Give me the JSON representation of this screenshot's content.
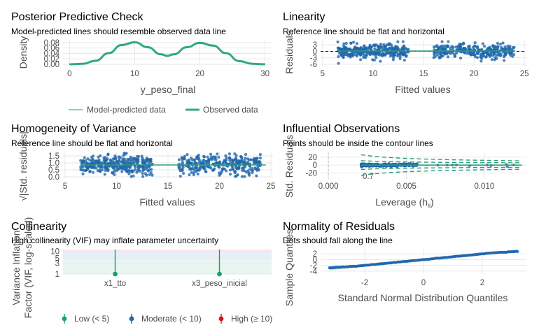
{
  "chart_data": [
    {
      "type": "line",
      "panel": "posterior-predictive-check",
      "title": "Posterior Predictive Check",
      "subtitle": "Model-predicted lines should resemble observed data line",
      "xlabel": "y_peso_final",
      "ylabel": "Density",
      "xlim": [
        -1,
        31
      ],
      "ylim": [
        0,
        0.09
      ],
      "xticks": [
        "0",
        "10",
        "20",
        "30"
      ],
      "yticks": [
        "0.00",
        "0.02",
        "0.04",
        "0.06",
        "0.08"
      ],
      "series": [
        {
          "name": "Model-predicted data",
          "color": "#1b9e77",
          "x": [
            0,
            2,
            4,
            6,
            8,
            10,
            12,
            14,
            15,
            16,
            18,
            20,
            22,
            24,
            26,
            28,
            30
          ],
          "y": [
            0.0,
            0.002,
            0.012,
            0.04,
            0.07,
            0.08,
            0.062,
            0.036,
            0.03,
            0.036,
            0.062,
            0.078,
            0.068,
            0.04,
            0.012,
            0.002,
            0.0
          ]
        },
        {
          "name": "Observed data",
          "color": "#33a983",
          "x": [
            0,
            2,
            4,
            6,
            8,
            10,
            12,
            14,
            15,
            16,
            18,
            20,
            22,
            24,
            26,
            28,
            30
          ],
          "y": [
            0.0,
            0.002,
            0.013,
            0.041,
            0.071,
            0.081,
            0.063,
            0.037,
            0.031,
            0.037,
            0.063,
            0.079,
            0.069,
            0.041,
            0.012,
            0.002,
            0.0
          ]
        }
      ],
      "legend_position": "bottom"
    },
    {
      "type": "scatter",
      "panel": "linearity",
      "title": "Linearity",
      "subtitle": "Reference line should be flat and horizontal",
      "xlabel": "Fitted values",
      "ylabel": "Residuals",
      "xlim": [
        4.8,
        25.2
      ],
      "ylim": [
        -7,
        5
      ],
      "xticks": [
        "5",
        "10",
        "15",
        "20",
        "25"
      ],
      "yticks": [
        "-6",
        "-3",
        "0",
        "3"
      ],
      "clusters": [
        {
          "x_range": [
            6.5,
            13.5
          ],
          "y_sd": 1.6,
          "n": 320
        },
        {
          "x_range": [
            16.0,
            24.0
          ],
          "y_sd": 1.6,
          "n": 300
        }
      ],
      "reference_line": 0,
      "point_color": "#2166ac",
      "fit_color": "#2c9d78"
    },
    {
      "type": "scatter",
      "panel": "homogeneity-of-variance",
      "title": "Homogeneity of Variance",
      "subtitle": "Reference line should be flat and horizontal",
      "xlabel": "Fitted values",
      "ylabel": "√|Std. residuals|",
      "xlim": [
        4.8,
        25.2
      ],
      "ylim": [
        -0.05,
        1.75
      ],
      "xticks": [
        "5",
        "10",
        "15",
        "20",
        "25"
      ],
      "yticks": [
        "0.0",
        "0.5",
        "1.0",
        "1.5"
      ],
      "clusters": [
        {
          "x_range": [
            6.5,
            13.5
          ],
          "y_mean": 0.85,
          "y_sd": 0.35,
          "n": 320
        },
        {
          "x_range": [
            16.0,
            24.0
          ],
          "y_mean": 0.85,
          "y_sd": 0.35,
          "n": 300
        }
      ],
      "fit_line_y": 0.85,
      "point_color": "#2166ac",
      "fit_color": "#2c9d78"
    },
    {
      "type": "scatter",
      "panel": "influential-observations",
      "title": "Influential Observations",
      "subtitle": "Points should be inside the contour lines",
      "xlabel": "Leverage (hii)",
      "ylabel": "Std. Residuals",
      "xlim": [
        -0.0005,
        0.0127
      ],
      "ylim": [
        -35,
        32
      ],
      "xticks": [
        "0.000",
        "0.005",
        "0.010"
      ],
      "yticks": [
        "-20",
        "0",
        "20"
      ],
      "contour_label": "0.7",
      "points_x_range": [
        0.0021,
        0.0124
      ],
      "point_color": "#2166ac",
      "fit_color": "#2c9d78"
    },
    {
      "type": "scatter",
      "panel": "collinearity",
      "title": "Collinearity",
      "subtitle": "High collinearity (VIF) may inflate parameter uncertainty",
      "xlabel": "",
      "ylabel": "Variance Inflation Factor (VIF, log-scaled)",
      "categories": [
        "x1_tto",
        "x3_peso_inicial"
      ],
      "values": [
        1.0,
        1.0
      ],
      "y_scale": "log",
      "ylim": [
        1,
        12
      ],
      "yticks": [
        "1",
        "3",
        "5",
        "10"
      ],
      "bands": [
        {
          "name": "Low (< 5)",
          "color": "#1b9e77",
          "from": 1,
          "to": 5
        },
        {
          "name": "Moderate (< 10)",
          "color": "#2166ac",
          "from": 5,
          "to": 10
        },
        {
          "name": "High (≥ 10)",
          "color": "#cb181d",
          "from": 10,
          "to": 12
        }
      ],
      "legend_position": "bottom"
    },
    {
      "type": "scatter",
      "panel": "normality-of-residuals",
      "title": "Normality of Residuals",
      "subtitle": "Dots should fall along the line",
      "xlabel": "Standard Normal Distribution Quantiles",
      "ylabel": "Sample Quantiles",
      "xlim": [
        -3.5,
        3.5
      ],
      "ylim": [
        -5,
        3.5
      ],
      "xticks": [
        "-2",
        "0",
        "2"
      ],
      "yticks": [
        "-4",
        "-2",
        "0",
        "2"
      ],
      "theoretical_range": [
        -3.2,
        3.2
      ],
      "point_color": "#2166ac",
      "fit_color": "#2c9d78"
    }
  ]
}
